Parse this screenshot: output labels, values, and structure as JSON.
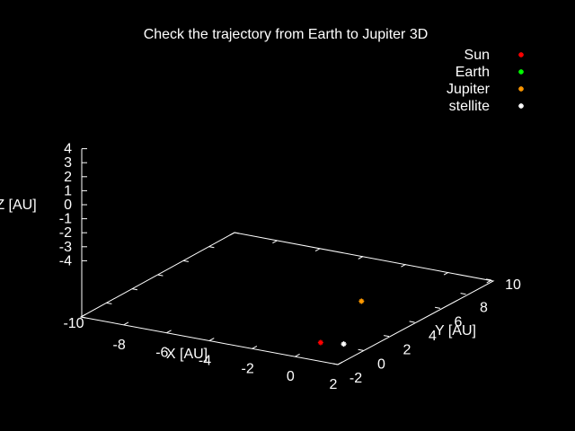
{
  "chart_data": {
    "type": "scatter",
    "title": "Check the trajectory from Earth to Jupiter 3D",
    "xlabel": "X [AU]",
    "ylabel": "Y [AU]",
    "zlabel": "Z [AU]",
    "xlim": [
      -10,
      2
    ],
    "ylim": [
      -2,
      10
    ],
    "zlim": [
      -4,
      4
    ],
    "xticks": [
      "-10",
      "-8",
      "-6",
      "-4",
      "-2",
      "0",
      "2"
    ],
    "yticks": [
      "-2",
      "0",
      "2",
      "4",
      "6",
      "8",
      "10"
    ],
    "zticks": [
      "-4",
      "-3",
      "-2",
      "-1",
      "0",
      "1",
      "2",
      "3",
      "4"
    ],
    "legend_position": "top-right",
    "grid": false,
    "series": [
      {
        "name": "Sun",
        "color": "#ff0000",
        "points": [
          [
            0,
            0,
            0
          ]
        ]
      },
      {
        "name": "Earth",
        "color": "#00ff00",
        "points": []
      },
      {
        "name": "Jupiter",
        "color": "#ff9900",
        "points": [
          [
            -1.2,
            5.2,
            0
          ]
        ]
      },
      {
        "name": "stellite",
        "color": "#ffffff",
        "points": [
          [
            0.9,
            0.3,
            0
          ]
        ]
      }
    ]
  }
}
